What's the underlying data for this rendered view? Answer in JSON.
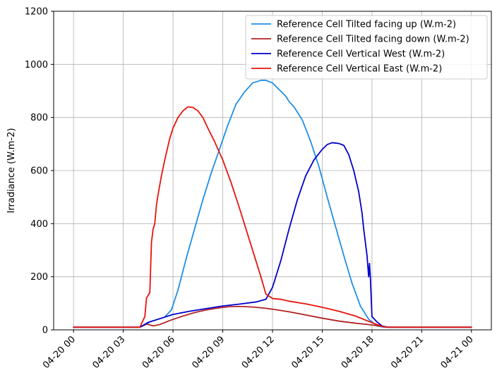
{
  "chart_data": {
    "type": "line",
    "title": "",
    "xlabel": "",
    "ylabel": "Irradiance (W.m-2)",
    "xlim": [
      "04-20 00:00",
      "04-21 00:00"
    ],
    "ylim": [
      0,
      1200
    ],
    "grid": true,
    "legend_position": "top-right",
    "x_ticks": [
      "04-20 00",
      "04-20 03",
      "04-20 06",
      "04-20 09",
      "04-20 12",
      "04-20 15",
      "04-20 18",
      "04-20 21",
      "04-21 00"
    ],
    "y_ticks": [
      0,
      200,
      400,
      600,
      800,
      1000,
      1200
    ],
    "x_unit": "hours of 04-20",
    "series": [
      {
        "name": "Reference Cell Tilted facing up (W.m-2)",
        "color": "#1f8ee6",
        "x": [
          0,
          4,
          4.3,
          4.6,
          5.0,
          5.5,
          5.9,
          6.3,
          6.8,
          7.3,
          7.8,
          8.3,
          8.8,
          9.3,
          9.8,
          10.3,
          10.8,
          11.3,
          11.6,
          12.0,
          12.4,
          12.8,
          13.0,
          13.3,
          13.8,
          14.3,
          14.8,
          15.3,
          15.8,
          16.3,
          16.8,
          17.3,
          17.8,
          18.3,
          18.7,
          19.0,
          24
        ],
        "y": [
          10,
          10,
          18,
          30,
          38,
          48,
          75,
          150,
          270,
          380,
          490,
          590,
          680,
          770,
          850,
          895,
          930,
          940,
          940,
          930,
          905,
          880,
          860,
          840,
          790,
          710,
          615,
          500,
          390,
          280,
          175,
          90,
          40,
          15,
          10,
          10,
          10
        ]
      },
      {
        "name": "Reference Cell Tilted facing down (W.m-2)",
        "color": "#b22222",
        "x": [
          0,
          4,
          4.4,
          4.8,
          5.2,
          5.8,
          6.5,
          7.3,
          8.0,
          8.8,
          9.5,
          10.2,
          10.8,
          11.5,
          12.2,
          13.0,
          14.0,
          15.0,
          16.0,
          17.0,
          17.8,
          18.4,
          18.8,
          19.0,
          24
        ],
        "y": [
          10,
          10,
          22,
          15,
          20,
          35,
          50,
          65,
          75,
          83,
          88,
          88,
          86,
          82,
          76,
          68,
          56,
          44,
          33,
          25,
          20,
          15,
          12,
          10,
          10
        ]
      },
      {
        "name": "Reference Cell Vertical West (W.m-2)",
        "color": "#0000cc",
        "x": [
          0,
          4.0,
          4.5,
          5.0,
          5.5,
          6.0,
          7.0,
          8.0,
          9.0,
          10.0,
          11.0,
          11.6,
          12.0,
          12.5,
          13.0,
          13.5,
          14.0,
          14.5,
          15.0,
          15.3,
          15.6,
          16.0,
          16.3,
          16.6,
          16.9,
          17.2,
          17.4,
          17.5,
          17.7,
          17.8,
          17.85,
          17.9,
          18.0,
          18.3,
          18.6,
          18.9,
          24
        ],
        "y": [
          10,
          10,
          28,
          38,
          48,
          58,
          70,
          80,
          90,
          97,
          105,
          115,
          160,
          260,
          380,
          490,
          580,
          640,
          680,
          698,
          705,
          702,
          695,
          660,
          600,
          520,
          440,
          380,
          280,
          200,
          250,
          200,
          50,
          30,
          15,
          10,
          10
        ]
      },
      {
        "name": "Reference Cell Vertical East (W.m-2)",
        "color": "#e8130c",
        "x": [
          0,
          4.0,
          4.3,
          4.4,
          4.6,
          4.7,
          4.8,
          4.9,
          5.0,
          5.1,
          5.3,
          5.5,
          5.8,
          6.0,
          6.3,
          6.6,
          6.9,
          7.2,
          7.5,
          7.8,
          8.1,
          8.5,
          9.0,
          9.5,
          10.0,
          10.5,
          11.0,
          11.3,
          11.6,
          12.0,
          12.5,
          13.0,
          14.0,
          15.0,
          16.0,
          17.0,
          17.8,
          18.3,
          18.7,
          19.0,
          24
        ],
        "y": [
          10,
          10,
          50,
          120,
          140,
          330,
          380,
          400,
          470,
          510,
          580,
          640,
          720,
          760,
          800,
          825,
          840,
          838,
          825,
          800,
          760,
          710,
          640,
          555,
          460,
          360,
          260,
          200,
          135,
          118,
          115,
          108,
          98,
          85,
          70,
          52,
          32,
          20,
          12,
          10,
          10
        ]
      }
    ]
  }
}
